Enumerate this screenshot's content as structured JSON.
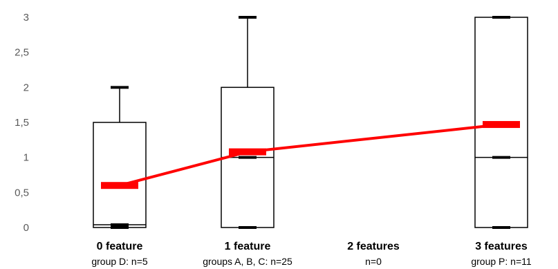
{
  "chart_data": {
    "type": "box",
    "title": "",
    "xlabel": "",
    "ylabel": "",
    "ylim": [
      0,
      3
    ],
    "yticks": [
      0,
      0.5,
      1,
      1.5,
      2,
      2.5,
      3
    ],
    "ytick_labels": [
      "0",
      "0,5",
      "1",
      "1,5",
      "2",
      "2,5",
      "3"
    ],
    "grid": false,
    "categories": [
      "0 feature",
      "1 feature",
      "2 features",
      "3 features"
    ],
    "category_sublabels": [
      "group D: n=5",
      "groups A, B, C: n=25",
      "n=0",
      "group P: n=11"
    ],
    "boxes": [
      {
        "min": 0,
        "q1": 0,
        "median": 0.04,
        "q3": 1.5,
        "max": 2
      },
      {
        "min": 0,
        "q1": 0,
        "median": 1,
        "q3": 2,
        "max": 3
      },
      null,
      {
        "min": 0,
        "q1": 0,
        "median": 1,
        "q3": 3,
        "max": 3
      }
    ],
    "mean_series": {
      "values": [
        0.6,
        1.08,
        null,
        1.47
      ],
      "color": "#ff0000"
    },
    "box_color": "#000000"
  }
}
